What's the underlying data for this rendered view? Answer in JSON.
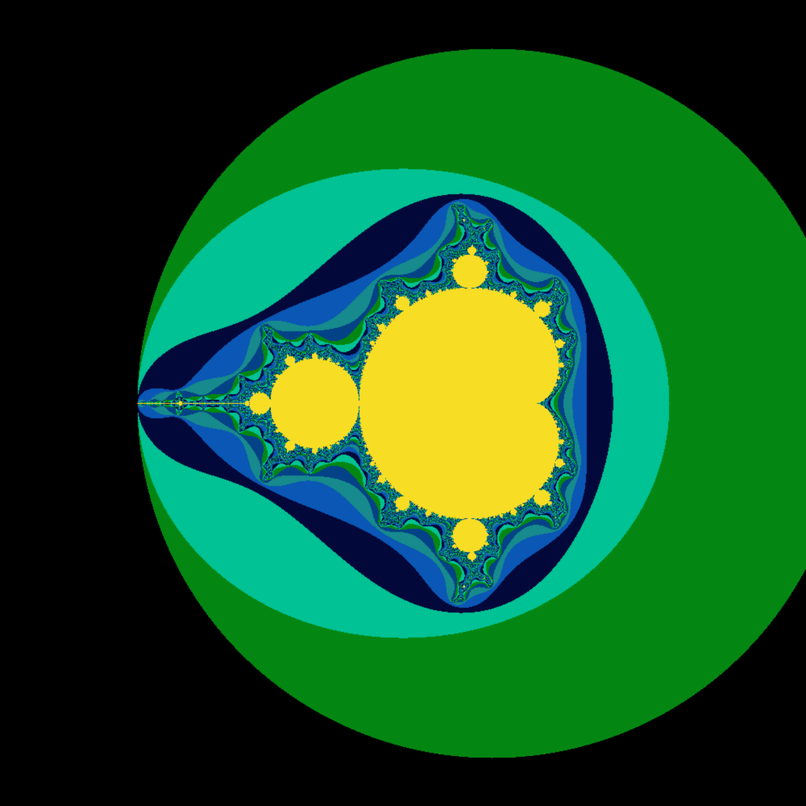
{
  "image": {
    "subject": "mandelbrot-set",
    "palette": {
      "outside": "#000000",
      "band_1": "#034287",
      "band_2": "#048712",
      "band_3": "#00C294",
      "band_4": "#03083A",
      "band_5": "#0A57B5",
      "band_6": "#168A8C",
      "set_interior": "#F8DD25"
    }
  }
}
